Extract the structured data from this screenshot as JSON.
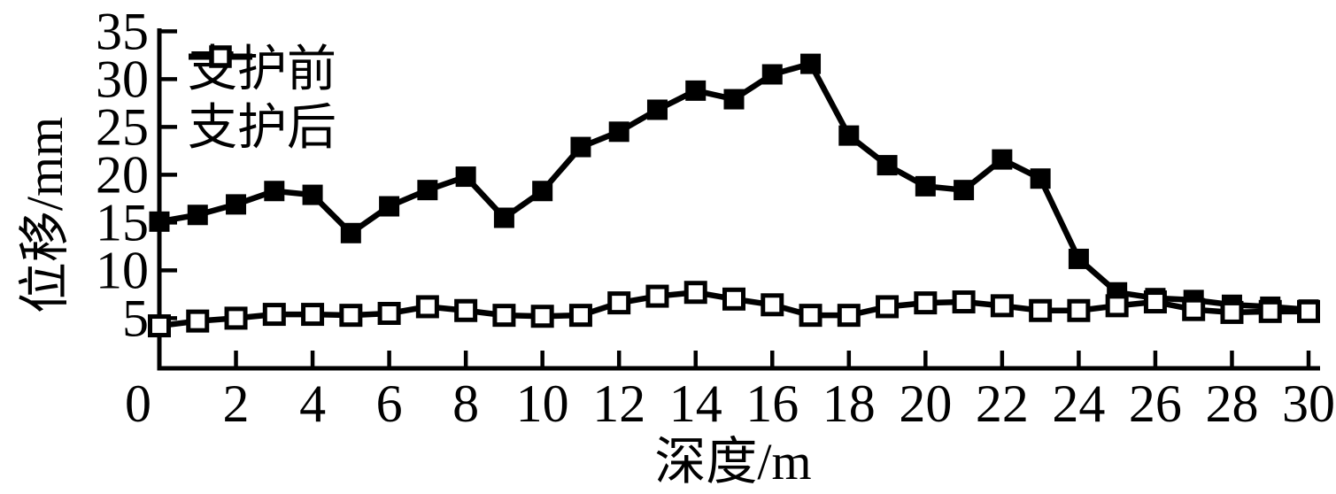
{
  "chart_data": {
    "type": "line",
    "title": "",
    "xlabel": "深度/m",
    "ylabel": "位移/mm",
    "x": [
      0,
      1,
      2,
      3,
      4,
      5,
      6,
      7,
      8,
      9,
      10,
      11,
      12,
      13,
      14,
      15,
      16,
      17,
      18,
      19,
      20,
      21,
      22,
      23,
      24,
      25,
      26,
      27,
      28,
      29,
      30
    ],
    "series": [
      {
        "name": "支护前",
        "marker": "filled-square",
        "values": [
          15.1,
          15.8,
          16.9,
          18.3,
          17.9,
          13.9,
          16.7,
          18.4,
          19.8,
          15.5,
          18.3,
          22.9,
          24.5,
          26.8,
          28.8,
          27.9,
          30.5,
          31.6,
          24.1,
          21.0,
          18.8,
          18.4,
          21.6,
          19.6,
          11.2,
          7.7,
          7.1,
          6.9,
          6.4,
          6.2,
          5.9
        ]
      },
      {
        "name": "支护后",
        "marker": "hollow-square",
        "values": [
          4.2,
          4.7,
          5.0,
          5.4,
          5.4,
          5.3,
          5.5,
          6.2,
          5.8,
          5.3,
          5.2,
          5.3,
          6.6,
          7.3,
          7.7,
          7.0,
          6.4,
          5.3,
          5.3,
          6.2,
          6.6,
          6.7,
          6.3,
          5.8,
          5.8,
          6.3,
          6.7,
          5.9,
          5.6,
          5.7,
          5.7
        ]
      }
    ],
    "xticks": [
      0,
      2,
      4,
      6,
      8,
      10,
      12,
      14,
      16,
      18,
      20,
      22,
      24,
      26,
      28,
      30
    ],
    "yticks": [
      5,
      10,
      15,
      20,
      25,
      30,
      35
    ],
    "xlim": [
      0,
      30
    ],
    "ylim": [
      0,
      35
    ],
    "grid": false,
    "legend_position": "upper-left",
    "colors": {
      "foreground": "#000000",
      "background": "#ffffff"
    }
  }
}
